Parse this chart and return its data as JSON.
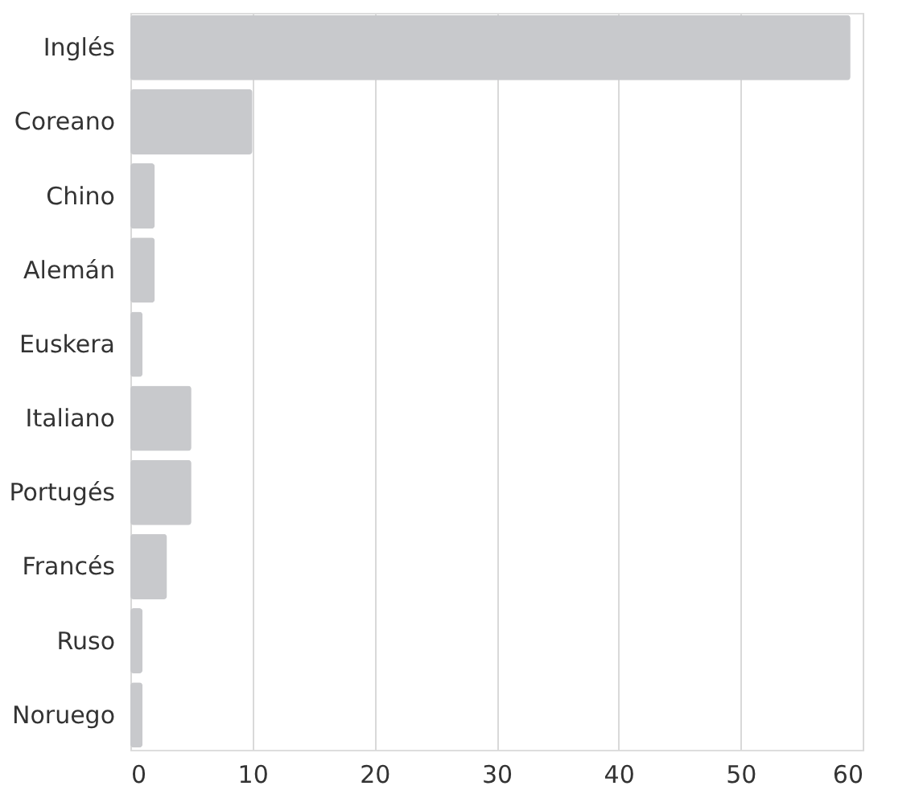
{
  "chart_data": {
    "type": "bar",
    "orientation": "horizontal",
    "categories": [
      "Inglés",
      "Coreano",
      "Chino",
      "Alemán",
      "Euskera",
      "Italiano",
      "Portugés",
      "Francés",
      "Ruso",
      "Noruego"
    ],
    "values": [
      59,
      10,
      2,
      2,
      1,
      5,
      5,
      3,
      1,
      1
    ],
    "color": "#c8c9cc",
    "xlim": [
      0,
      60
    ],
    "xticks": [
      0,
      10,
      20,
      30,
      40,
      50,
      60
    ],
    "grid": "x"
  }
}
